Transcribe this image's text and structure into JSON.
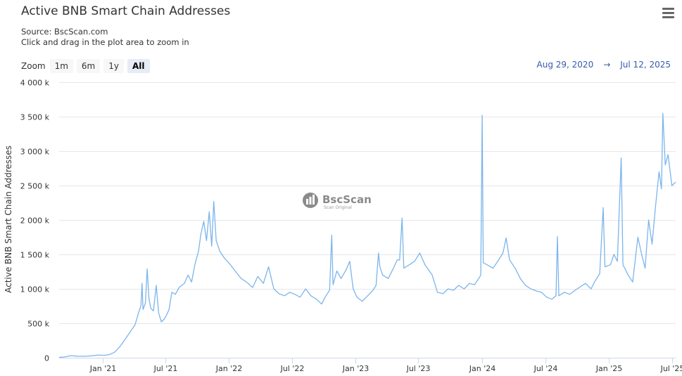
{
  "header": {
    "title": "Active BNB Smart Chain Addresses",
    "source": "Source: BscScan.com",
    "hint": "Click and drag in the plot area to zoom in"
  },
  "zoom": {
    "label": "Zoom",
    "buttons": [
      {
        "label": "1m",
        "active": false
      },
      {
        "label": "6m",
        "active": false
      },
      {
        "label": "1y",
        "active": false
      },
      {
        "label": "All",
        "active": true
      }
    ]
  },
  "range": {
    "from": "Aug 29, 2020",
    "arrow": "→",
    "to": "Jul 12, 2025"
  },
  "watermark": {
    "brand": "BscScan",
    "tagline": "Scan Original"
  },
  "chart_data": {
    "type": "line",
    "title": "Active BNB Smart Chain Addresses",
    "ylabel": "Active BNB Smart Chain Addresses",
    "ylim": [
      0,
      4000
    ],
    "yticks": [
      0,
      500,
      1000,
      1500,
      2000,
      2500,
      3000,
      3500,
      4000
    ],
    "ytick_labels": [
      "0",
      "500 k",
      "1 000 k",
      "1 500 k",
      "2 000 k",
      "2 500 k",
      "3 000 k",
      "3 500 k",
      "4 000 k"
    ],
    "ytick_unit": "k",
    "xlim": [
      "2020-08-29",
      "2025-07-12"
    ],
    "xticks": [
      {
        "date": "2021-01-01",
        "label": "Jan '21"
      },
      {
        "date": "2021-07-01",
        "label": "Jul '21"
      },
      {
        "date": "2022-01-01",
        "label": "Jan '22"
      },
      {
        "date": "2022-07-01",
        "label": "Jul '22"
      },
      {
        "date": "2023-01-01",
        "label": "Jan '23"
      },
      {
        "date": "2023-07-01",
        "label": "Jul '23"
      },
      {
        "date": "2024-01-01",
        "label": "Jan '24"
      },
      {
        "date": "2024-07-01",
        "label": "Jul '24"
      },
      {
        "date": "2025-01-01",
        "label": "Jan '25"
      },
      {
        "date": "2025-07-01",
        "label": "Jul '25"
      }
    ],
    "grid": true,
    "series": [
      {
        "color": "#7cb5ec",
        "points": [
          [
            "2020-08-29",
            5
          ],
          [
            "2020-09-15",
            12
          ],
          [
            "2020-10-01",
            30
          ],
          [
            "2020-10-20",
            22
          ],
          [
            "2020-11-10",
            20
          ],
          [
            "2020-12-01",
            28
          ],
          [
            "2020-12-20",
            40
          ],
          [
            "2021-01-05",
            35
          ],
          [
            "2021-01-20",
            45
          ],
          [
            "2021-02-05",
            80
          ],
          [
            "2021-02-20",
            160
          ],
          [
            "2021-03-05",
            250
          ],
          [
            "2021-03-20",
            360
          ],
          [
            "2021-04-05",
            480
          ],
          [
            "2021-04-15",
            650
          ],
          [
            "2021-04-22",
            760
          ],
          [
            "2021-04-25",
            1080
          ],
          [
            "2021-04-28",
            700
          ],
          [
            "2021-05-05",
            800
          ],
          [
            "2021-05-10",
            1290
          ],
          [
            "2021-05-15",
            860
          ],
          [
            "2021-05-20",
            720
          ],
          [
            "2021-05-28",
            680
          ],
          [
            "2021-06-05",
            1050
          ],
          [
            "2021-06-12",
            650
          ],
          [
            "2021-06-20",
            520
          ],
          [
            "2021-06-28",
            560
          ],
          [
            "2021-07-05",
            620
          ],
          [
            "2021-07-12",
            700
          ],
          [
            "2021-07-20",
            950
          ],
          [
            "2021-07-30",
            920
          ],
          [
            "2021-08-10",
            1020
          ],
          [
            "2021-08-25",
            1080
          ],
          [
            "2021-09-05",
            1200
          ],
          [
            "2021-09-15",
            1100
          ],
          [
            "2021-09-25",
            1360
          ],
          [
            "2021-10-05",
            1550
          ],
          [
            "2021-10-12",
            1800
          ],
          [
            "2021-10-20",
            1980
          ],
          [
            "2021-10-28",
            1700
          ],
          [
            "2021-11-05",
            2120
          ],
          [
            "2021-11-12",
            1620
          ],
          [
            "2021-11-18",
            2270
          ],
          [
            "2021-11-25",
            1700
          ],
          [
            "2021-12-05",
            1550
          ],
          [
            "2021-12-18",
            1450
          ],
          [
            "2022-01-05",
            1350
          ],
          [
            "2022-01-20",
            1250
          ],
          [
            "2022-02-05",
            1150
          ],
          [
            "2022-02-20",
            1100
          ],
          [
            "2022-03-10",
            1020
          ],
          [
            "2022-03-25",
            1180
          ],
          [
            "2022-04-10",
            1080
          ],
          [
            "2022-04-25",
            1320
          ],
          [
            "2022-05-10",
            1000
          ],
          [
            "2022-05-25",
            930
          ],
          [
            "2022-06-10",
            900
          ],
          [
            "2022-06-25",
            950
          ],
          [
            "2022-07-10",
            920
          ],
          [
            "2022-07-25",
            880
          ],
          [
            "2022-08-10",
            1000
          ],
          [
            "2022-08-25",
            900
          ],
          [
            "2022-09-10",
            850
          ],
          [
            "2022-09-25",
            780
          ],
          [
            "2022-10-05",
            880
          ],
          [
            "2022-10-18",
            980
          ],
          [
            "2022-10-24",
            1780
          ],
          [
            "2022-10-28",
            1060
          ],
          [
            "2022-11-08",
            1260
          ],
          [
            "2022-11-20",
            1150
          ],
          [
            "2022-12-05",
            1280
          ],
          [
            "2022-12-15",
            1400
          ],
          [
            "2022-12-25",
            1000
          ],
          [
            "2023-01-05",
            880
          ],
          [
            "2023-01-20",
            820
          ],
          [
            "2023-02-05",
            900
          ],
          [
            "2023-02-20",
            980
          ],
          [
            "2023-03-01",
            1050
          ],
          [
            "2023-03-08",
            1520
          ],
          [
            "2023-03-12",
            1320
          ],
          [
            "2023-03-20",
            1200
          ],
          [
            "2023-04-05",
            1150
          ],
          [
            "2023-04-20",
            1300
          ],
          [
            "2023-05-01",
            1420
          ],
          [
            "2023-05-08",
            1420
          ],
          [
            "2023-05-15",
            2030
          ],
          [
            "2023-05-20",
            1300
          ],
          [
            "2023-06-05",
            1350
          ],
          [
            "2023-06-20",
            1400
          ],
          [
            "2023-07-05",
            1520
          ],
          [
            "2023-07-20",
            1350
          ],
          [
            "2023-08-10",
            1200
          ],
          [
            "2023-08-25",
            950
          ],
          [
            "2023-09-10",
            930
          ],
          [
            "2023-09-25",
            1000
          ],
          [
            "2023-10-10",
            980
          ],
          [
            "2023-10-25",
            1050
          ],
          [
            "2023-11-10",
            1000
          ],
          [
            "2023-11-25",
            1080
          ],
          [
            "2023-12-10",
            1060
          ],
          [
            "2023-12-22",
            1150
          ],
          [
            "2023-12-28",
            1200
          ],
          [
            "2024-01-01",
            3520
          ],
          [
            "2024-01-04",
            1380
          ],
          [
            "2024-01-15",
            1350
          ],
          [
            "2024-02-01",
            1300
          ],
          [
            "2024-02-15",
            1400
          ],
          [
            "2024-03-01",
            1520
          ],
          [
            "2024-03-10",
            1740
          ],
          [
            "2024-03-20",
            1420
          ],
          [
            "2024-04-05",
            1300
          ],
          [
            "2024-04-20",
            1150
          ],
          [
            "2024-05-05",
            1050
          ],
          [
            "2024-05-20",
            1000
          ],
          [
            "2024-06-05",
            970
          ],
          [
            "2024-06-20",
            950
          ],
          [
            "2024-07-05",
            880
          ],
          [
            "2024-07-20",
            850
          ],
          [
            "2024-08-01",
            900
          ],
          [
            "2024-08-05",
            1760
          ],
          [
            "2024-08-09",
            900
          ],
          [
            "2024-08-25",
            950
          ],
          [
            "2024-09-10",
            920
          ],
          [
            "2024-09-25",
            980
          ],
          [
            "2024-10-10",
            1030
          ],
          [
            "2024-10-25",
            1080
          ],
          [
            "2024-11-10",
            1000
          ],
          [
            "2024-11-20",
            1100
          ],
          [
            "2024-12-05",
            1220
          ],
          [
            "2024-12-15",
            2180
          ],
          [
            "2024-12-20",
            1320
          ],
          [
            "2025-01-05",
            1350
          ],
          [
            "2025-01-15",
            1500
          ],
          [
            "2025-01-25",
            1400
          ],
          [
            "2025-02-05",
            2900
          ],
          [
            "2025-02-10",
            1350
          ],
          [
            "2025-02-25",
            1200
          ],
          [
            "2025-03-10",
            1100
          ],
          [
            "2025-03-25",
            1750
          ],
          [
            "2025-04-05",
            1500
          ],
          [
            "2025-04-15",
            1300
          ],
          [
            "2025-04-25",
            2000
          ],
          [
            "2025-05-05",
            1650
          ],
          [
            "2025-05-15",
            2200
          ],
          [
            "2025-05-25",
            2700
          ],
          [
            "2025-06-01",
            2450
          ],
          [
            "2025-06-05",
            3550
          ],
          [
            "2025-06-12",
            2800
          ],
          [
            "2025-06-20",
            2950
          ],
          [
            "2025-07-01",
            2500
          ],
          [
            "2025-07-12",
            2550
          ]
        ]
      }
    ]
  }
}
